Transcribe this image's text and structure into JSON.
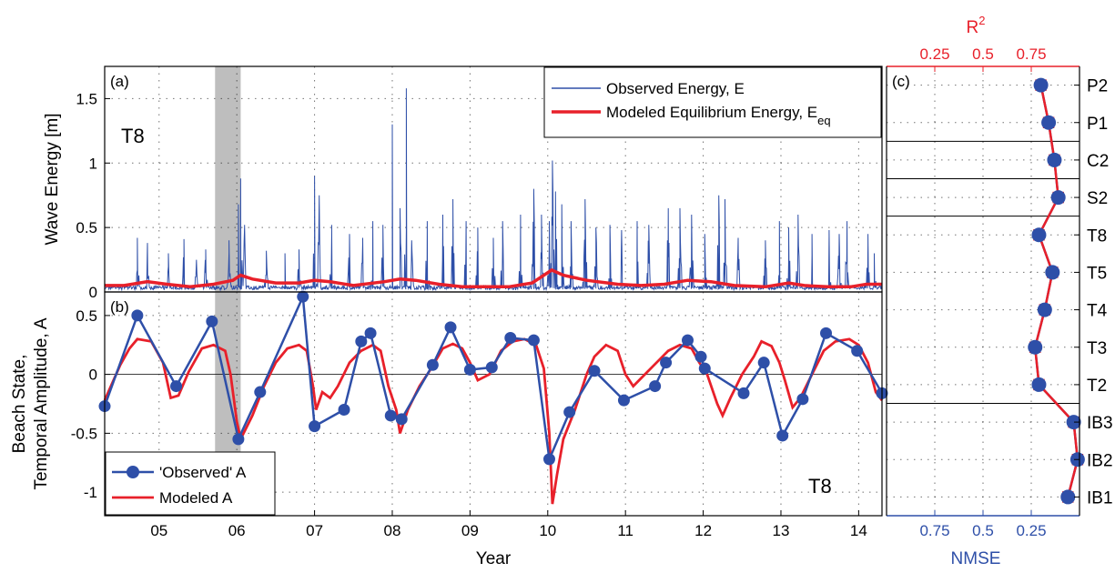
{
  "colors": {
    "observed": "#2e4fa8",
    "modeled": "#e8202a",
    "shade": "#a8a8a8",
    "r2_axis": "#e8202a",
    "nmse_axis": "#2e4fa8"
  },
  "chart_data": [
    {
      "panel": "(a)",
      "type": "line",
      "site_label": "T8",
      "ylabel": "Wave Energy [m]",
      "xlim": [
        4.3,
        14.3
      ],
      "ylim": [
        0,
        1.75
      ],
      "yticks": [
        "0",
        "0.5",
        "1",
        "1.5"
      ],
      "grid": true,
      "legend_position": "top-right",
      "shaded_span": [
        5.72,
        6.05
      ],
      "legend": {
        "observed": "Observed Energy, E",
        "modeled_main": "Modeled Equilibrium Energy, E",
        "modeled_sub": "eq"
      },
      "observed_peaks": [
        [
          4.72,
          0.42
        ],
        [
          4.85,
          0.38
        ],
        [
          5.12,
          0.3
        ],
        [
          5.32,
          0.41
        ],
        [
          5.48,
          0.25
        ],
        [
          5.6,
          0.33
        ],
        [
          5.9,
          0.4
        ],
        [
          6.02,
          0.68
        ],
        [
          6.05,
          0.88
        ],
        [
          6.1,
          0.52
        ],
        [
          6.38,
          0.32
        ],
        [
          6.62,
          0.3
        ],
        [
          6.8,
          0.33
        ],
        [
          7.0,
          0.9
        ],
        [
          7.06,
          0.75
        ],
        [
          7.22,
          0.52
        ],
        [
          7.45,
          0.45
        ],
        [
          7.62,
          0.42
        ],
        [
          7.75,
          0.55
        ],
        [
          7.88,
          0.52
        ],
        [
          8.0,
          1.3
        ],
        [
          8.1,
          0.65
        ],
        [
          8.18,
          1.58
        ],
        [
          8.25,
          0.4
        ],
        [
          8.45,
          0.55
        ],
        [
          8.65,
          0.6
        ],
        [
          8.78,
          0.72
        ],
        [
          8.95,
          0.55
        ],
        [
          9.1,
          0.5
        ],
        [
          9.3,
          0.42
        ],
        [
          9.42,
          0.55
        ],
        [
          9.65,
          0.6
        ],
        [
          9.82,
          0.8
        ],
        [
          9.92,
          0.6
        ],
        [
          10.02,
          0.55
        ],
        [
          10.06,
          1.02
        ],
        [
          10.1,
          0.78
        ],
        [
          10.18,
          0.68
        ],
        [
          10.3,
          0.55
        ],
        [
          10.48,
          0.72
        ],
        [
          10.62,
          0.5
        ],
        [
          10.8,
          0.52
        ],
        [
          10.95,
          0.48
        ],
        [
          11.15,
          0.55
        ],
        [
          11.3,
          0.52
        ],
        [
          11.55,
          0.65
        ],
        [
          11.7,
          0.65
        ],
        [
          11.85,
          0.6
        ],
        [
          12.02,
          0.45
        ],
        [
          12.2,
          0.75
        ],
        [
          12.28,
          0.72
        ],
        [
          12.45,
          0.42
        ],
        [
          12.8,
          0.4
        ],
        [
          12.98,
          0.55
        ],
        [
          13.1,
          0.5
        ],
        [
          13.22,
          0.6
        ],
        [
          13.4,
          0.45
        ],
        [
          13.62,
          0.48
        ],
        [
          13.75,
          0.45
        ],
        [
          13.85,
          0.55
        ],
        [
          14.12,
          0.45
        ],
        [
          14.2,
          0.3
        ]
      ],
      "modeled_series": [
        [
          4.3,
          0.05
        ],
        [
          4.55,
          0.05
        ],
        [
          4.85,
          0.08
        ],
        [
          5.1,
          0.06
        ],
        [
          5.4,
          0.04
        ],
        [
          5.7,
          0.06
        ],
        [
          5.95,
          0.09
        ],
        [
          6.05,
          0.13
        ],
        [
          6.2,
          0.1
        ],
        [
          6.5,
          0.07
        ],
        [
          6.8,
          0.07
        ],
        [
          7.0,
          0.09
        ],
        [
          7.2,
          0.08
        ],
        [
          7.5,
          0.05
        ],
        [
          7.9,
          0.08
        ],
        [
          8.1,
          0.1
        ],
        [
          8.3,
          0.09
        ],
        [
          8.6,
          0.06
        ],
        [
          8.9,
          0.04
        ],
        [
          9.2,
          0.04
        ],
        [
          9.5,
          0.04
        ],
        [
          9.8,
          0.07
        ],
        [
          10.05,
          0.17
        ],
        [
          10.2,
          0.13
        ],
        [
          10.5,
          0.09
        ],
        [
          10.9,
          0.06
        ],
        [
          11.2,
          0.05
        ],
        [
          11.5,
          0.06
        ],
        [
          11.8,
          0.09
        ],
        [
          12.1,
          0.08
        ],
        [
          12.4,
          0.05
        ],
        [
          12.8,
          0.04
        ],
        [
          13.1,
          0.07
        ],
        [
          13.3,
          0.05
        ],
        [
          13.6,
          0.04
        ],
        [
          13.9,
          0.04
        ],
        [
          14.1,
          0.06
        ],
        [
          14.3,
          0.06
        ]
      ]
    },
    {
      "panel": "(b)",
      "type": "line",
      "site_label": "T8",
      "ylabel_line1": "Beach State,",
      "ylabel_line2": "Temporal Amplitude, A",
      "xlabel": "Year",
      "xlim": [
        4.3,
        14.3
      ],
      "ylim": [
        -1.2,
        0.7
      ],
      "yticks": [
        "-1",
        "-0.5",
        "0",
        "0.5"
      ],
      "xticks": [
        "05",
        "06",
        "07",
        "08",
        "09",
        "10",
        "11",
        "12",
        "13",
        "14"
      ],
      "grid": true,
      "legend_position": "bottom-left",
      "legend": {
        "observed": "'Observed' A",
        "modeled": "Modeled A"
      },
      "observed": [
        [
          4.3,
          -0.27
        ],
        [
          4.72,
          0.5
        ],
        [
          5.22,
          -0.1
        ],
        [
          5.68,
          0.45
        ],
        [
          6.02,
          -0.55
        ],
        [
          6.3,
          -0.15
        ],
        [
          6.85,
          0.66
        ],
        [
          7.0,
          -0.44
        ],
        [
          7.38,
          -0.3
        ],
        [
          7.6,
          0.28
        ],
        [
          7.72,
          0.35
        ],
        [
          7.98,
          -0.35
        ],
        [
          8.12,
          -0.38
        ],
        [
          8.52,
          0.08
        ],
        [
          8.75,
          0.4
        ],
        [
          9.0,
          0.04
        ],
        [
          9.28,
          0.06
        ],
        [
          9.52,
          0.31
        ],
        [
          9.82,
          0.29
        ],
        [
          10.02,
          -0.72
        ],
        [
          10.28,
          -0.32
        ],
        [
          10.6,
          0.03
        ],
        [
          10.98,
          -0.22
        ],
        [
          11.38,
          -0.1
        ],
        [
          11.52,
          0.1
        ],
        [
          11.8,
          0.29
        ],
        [
          11.97,
          0.15
        ],
        [
          12.02,
          0.05
        ],
        [
          12.52,
          -0.16
        ],
        [
          12.78,
          0.1
        ],
        [
          13.02,
          -0.52
        ],
        [
          13.28,
          -0.21
        ],
        [
          13.58,
          0.35
        ],
        [
          13.98,
          0.2
        ],
        [
          14.3,
          -0.16
        ]
      ],
      "modeled": [
        [
          4.3,
          -0.22
        ],
        [
          4.5,
          0.08
        ],
        [
          4.62,
          0.22
        ],
        [
          4.72,
          0.3
        ],
        [
          4.9,
          0.28
        ],
        [
          5.05,
          0.1
        ],
        [
          5.15,
          -0.2
        ],
        [
          5.25,
          -0.18
        ],
        [
          5.38,
          0.02
        ],
        [
          5.55,
          0.22
        ],
        [
          5.7,
          0.25
        ],
        [
          5.85,
          0.2
        ],
        [
          5.92,
          0.0
        ],
        [
          6.0,
          -0.4
        ],
        [
          6.05,
          -0.55
        ],
        [
          6.2,
          -0.35
        ],
        [
          6.35,
          -0.1
        ],
        [
          6.5,
          0.1
        ],
        [
          6.65,
          0.22
        ],
        [
          6.8,
          0.25
        ],
        [
          6.9,
          0.2
        ],
        [
          6.98,
          -0.1
        ],
        [
          7.02,
          -0.3
        ],
        [
          7.1,
          -0.15
        ],
        [
          7.2,
          -0.2
        ],
        [
          7.3,
          -0.1
        ],
        [
          7.45,
          0.1
        ],
        [
          7.6,
          0.2
        ],
        [
          7.75,
          0.25
        ],
        [
          7.85,
          0.2
        ],
        [
          7.95,
          -0.1
        ],
        [
          8.05,
          -0.3
        ],
        [
          8.1,
          -0.5
        ],
        [
          8.2,
          -0.3
        ],
        [
          8.35,
          -0.1
        ],
        [
          8.5,
          0.05
        ],
        [
          8.65,
          0.22
        ],
        [
          8.78,
          0.26
        ],
        [
          8.9,
          0.22
        ],
        [
          9.0,
          0.1
        ],
        [
          9.1,
          -0.05
        ],
        [
          9.25,
          0.0
        ],
        [
          9.4,
          0.2
        ],
        [
          9.55,
          0.28
        ],
        [
          9.7,
          0.3
        ],
        [
          9.85,
          0.25
        ],
        [
          9.95,
          0.05
        ],
        [
          10.02,
          -0.5
        ],
        [
          10.06,
          -1.1
        ],
        [
          10.12,
          -0.85
        ],
        [
          10.2,
          -0.55
        ],
        [
          10.35,
          -0.3
        ],
        [
          10.5,
          0.0
        ],
        [
          10.6,
          0.15
        ],
        [
          10.75,
          0.25
        ],
        [
          10.9,
          0.2
        ],
        [
          11.0,
          0.0
        ],
        [
          11.1,
          -0.1
        ],
        [
          11.25,
          0.0
        ],
        [
          11.4,
          0.1
        ],
        [
          11.55,
          0.2
        ],
        [
          11.7,
          0.25
        ],
        [
          11.85,
          0.22
        ],
        [
          11.95,
          0.1
        ],
        [
          12.05,
          0.0
        ],
        [
          12.18,
          -0.25
        ],
        [
          12.25,
          -0.35
        ],
        [
          12.35,
          -0.2
        ],
        [
          12.5,
          0.0
        ],
        [
          12.65,
          0.15
        ],
        [
          12.75,
          0.28
        ],
        [
          12.88,
          0.24
        ],
        [
          12.98,
          0.1
        ],
        [
          13.05,
          -0.05
        ],
        [
          13.15,
          -0.28
        ],
        [
          13.25,
          -0.2
        ],
        [
          13.4,
          0.0
        ],
        [
          13.55,
          0.2
        ],
        [
          13.7,
          0.28
        ],
        [
          13.88,
          0.3
        ],
        [
          14.0,
          0.25
        ],
        [
          14.12,
          0.1
        ],
        [
          14.22,
          -0.15
        ],
        [
          14.3,
          -0.22
        ]
      ]
    },
    {
      "panel": "(c)",
      "type": "line",
      "top_axis_label_main": "R",
      "top_axis_label_sup": "2",
      "bottom_axis_label": "NMSE",
      "top_ticks": [
        "0.25",
        "0.5",
        "0.75"
      ],
      "bottom_ticks": [
        "0.75",
        "0.5",
        "0.25"
      ],
      "sites": [
        "P2",
        "P1",
        "C2",
        "S2",
        "T8",
        "T5",
        "T4",
        "T3",
        "T2",
        "IB3",
        "IB2",
        "IB1"
      ],
      "groups": [
        [
          "P2",
          "P1"
        ],
        [
          "C2"
        ],
        [
          "S2"
        ],
        [
          "T8",
          "T5",
          "T4",
          "T3",
          "T2"
        ],
        [
          "IB3",
          "IB2",
          "IB1"
        ]
      ],
      "r2": [
        0.8,
        0.84,
        0.87,
        0.89,
        0.79,
        0.86,
        0.82,
        0.77,
        0.79,
        0.97,
        0.99,
        0.94
      ],
      "nmse": [
        0.2,
        0.16,
        0.13,
        0.11,
        0.21,
        0.14,
        0.18,
        0.23,
        0.21,
        0.03,
        0.01,
        0.06
      ]
    }
  ]
}
